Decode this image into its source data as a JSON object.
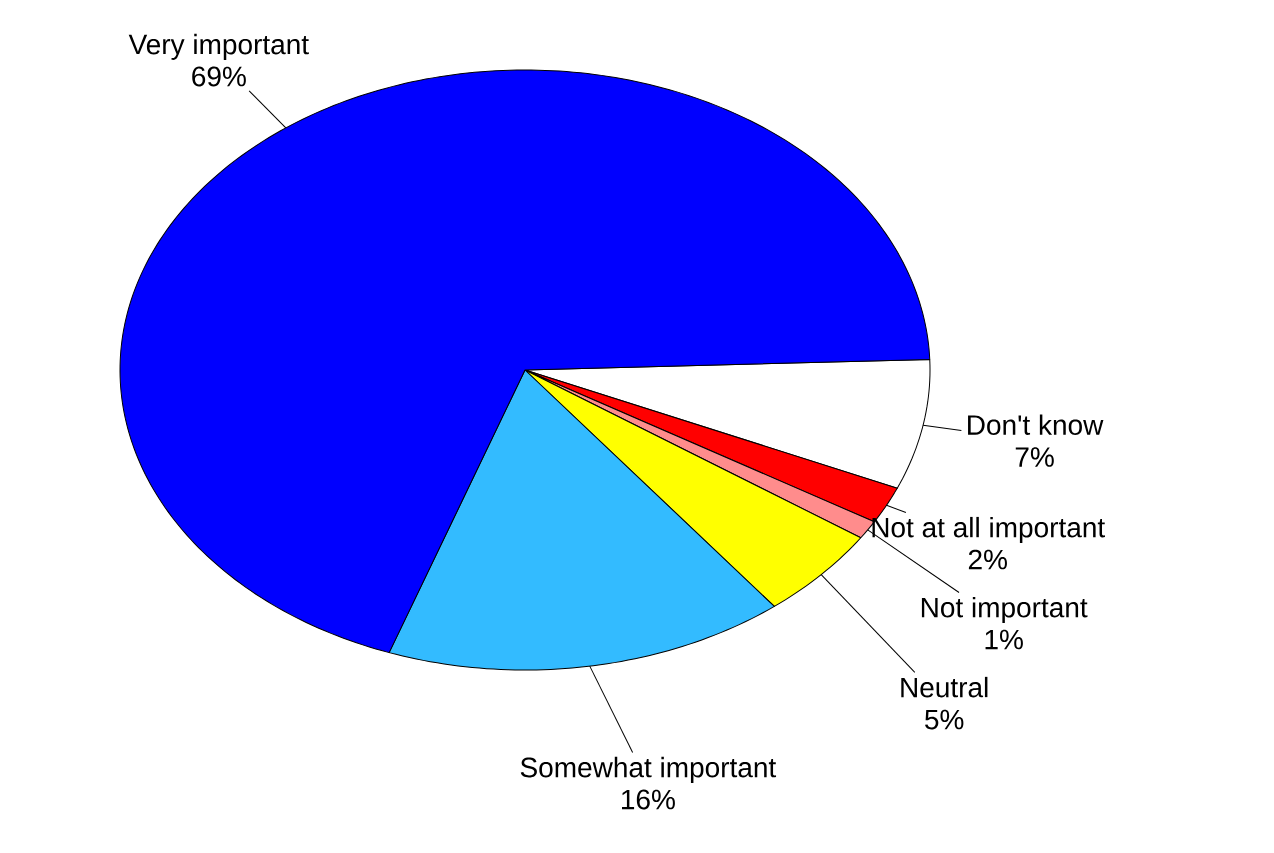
{
  "chart_data": {
    "type": "pie",
    "categories": [
      "Don't know",
      "Not at all important",
      "Not important",
      "Neutral",
      "Somewhat important",
      "Very important"
    ],
    "values": [
      7,
      2,
      1,
      5,
      16,
      69
    ],
    "value_labels": [
      "7%",
      "2%",
      "1%",
      "5%",
      "16%",
      "69%"
    ],
    "colors": [
      "#ffffff",
      "#ff0000",
      "#ff8c8c",
      "#ffff00",
      "#33bbff",
      "#0000ff"
    ]
  }
}
